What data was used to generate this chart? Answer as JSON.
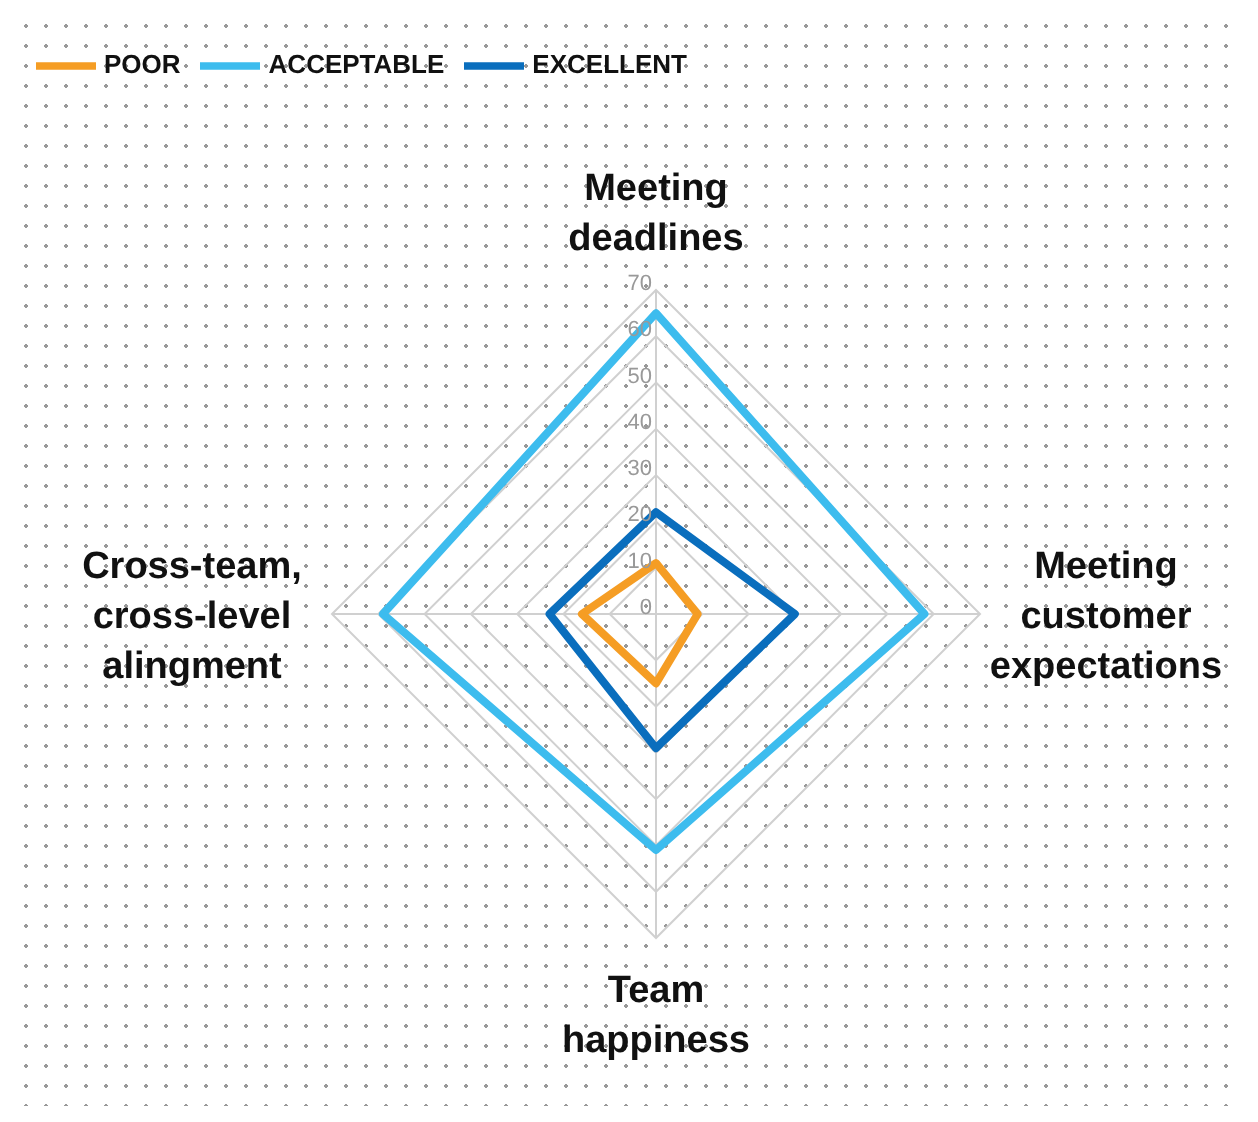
{
  "chart_data": {
    "type": "radar",
    "categories": [
      "Meeting deadlines",
      "Meeting customer expectations",
      "Team happiness",
      "Cross-team, cross-level alingment"
    ],
    "series": [
      {
        "name": "POOR",
        "color": "#f59d24",
        "values": [
          11,
          9,
          15,
          16
        ]
      },
      {
        "name": "ACCEPTABLE",
        "color": "#3dbcee",
        "values": [
          65,
          58,
          51,
          59
        ]
      },
      {
        "name": "EXCELLENT",
        "color": "#0a6ebd",
        "values": [
          22,
          30,
          29,
          23
        ]
      }
    ],
    "ylim": [
      0,
      70
    ],
    "yticks": [
      0,
      10,
      20,
      30,
      40,
      50,
      60,
      70
    ],
    "grid": true,
    "legend": "top left"
  }
}
